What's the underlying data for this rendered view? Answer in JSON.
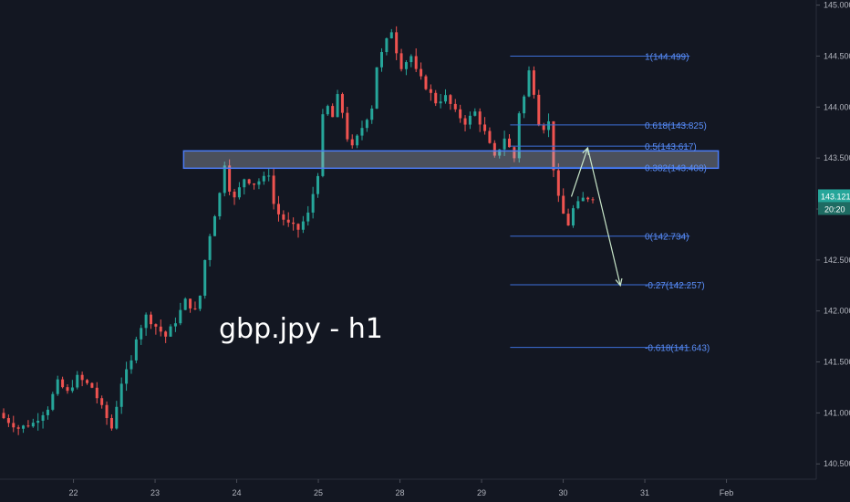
{
  "chart_data": {
    "type": "candlestick",
    "title": "gbp.jpy - h1",
    "ylim": [
      140.35,
      145.05
    ],
    "y_ticks": [
      "145.000",
      "144.500",
      "144.000",
      "143.500",
      "143.000",
      "142.500",
      "142.000",
      "141.500",
      "141.000",
      "140.500"
    ],
    "x_ticks": [
      {
        "label": "22",
        "pos": 0.09
      },
      {
        "label": "23",
        "pos": 0.19
      },
      {
        "label": "24",
        "pos": 0.29
      },
      {
        "label": "25",
        "pos": 0.39
      },
      {
        "label": "28",
        "pos": 0.49
      },
      {
        "label": "29",
        "pos": 0.59
      },
      {
        "label": "30",
        "pos": 0.69
      },
      {
        "label": "31",
        "pos": 0.79
      },
      {
        "label": "Feb",
        "pos": 0.89
      }
    ],
    "price_label": {
      "value": "143.121",
      "time": "20:20"
    },
    "candle_count": 135,
    "close_path": [
      [
        0,
        140.95
      ],
      [
        3,
        140.85
      ],
      [
        6,
        140.9
      ],
      [
        9,
        141.05
      ],
      [
        11,
        141.3
      ],
      [
        13,
        141.2
      ],
      [
        15,
        141.35
      ],
      [
        18,
        141.25
      ],
      [
        20,
        141.05
      ],
      [
        22,
        140.85
      ],
      [
        24,
        141.3
      ],
      [
        26,
        141.5
      ],
      [
        27,
        141.75
      ],
      [
        29,
        141.95
      ],
      [
        31,
        141.85
      ],
      [
        33,
        141.75
      ],
      [
        35,
        141.9
      ],
      [
        37,
        142.1
      ],
      [
        39,
        142.0
      ],
      [
        40,
        142.15
      ],
      [
        41,
        142.5
      ],
      [
        42,
        142.75
      ],
      [
        43,
        142.95
      ],
      [
        44,
        143.15
      ],
      [
        45,
        143.45
      ],
      [
        46,
        143.2
      ],
      [
        47,
        143.1
      ],
      [
        49,
        143.3
      ],
      [
        51,
        143.25
      ],
      [
        53,
        143.3
      ],
      [
        54,
        143.35
      ],
      [
        55,
        143.05
      ],
      [
        56,
        142.95
      ],
      [
        58,
        142.85
      ],
      [
        60,
        142.8
      ],
      [
        62,
        142.95
      ],
      [
        63,
        143.15
      ],
      [
        64,
        143.35
      ],
      [
        65,
        143.9
      ],
      [
        66,
        144.0
      ],
      [
        67,
        143.9
      ],
      [
        68,
        144.1
      ],
      [
        69,
        143.95
      ],
      [
        70,
        143.7
      ],
      [
        71,
        143.6
      ],
      [
        73,
        143.8
      ],
      [
        75,
        144.0
      ],
      [
        76,
        144.4
      ],
      [
        78,
        144.65
      ],
      [
        79,
        144.75
      ],
      [
        80,
        144.55
      ],
      [
        81,
        144.4
      ],
      [
        83,
        144.5
      ],
      [
        84,
        144.35
      ],
      [
        86,
        144.2
      ],
      [
        88,
        144.05
      ],
      [
        90,
        144.1
      ],
      [
        92,
        143.95
      ],
      [
        94,
        143.85
      ],
      [
        96,
        143.95
      ],
      [
        98,
        143.75
      ],
      [
        100,
        143.5
      ],
      [
        102,
        143.7
      ],
      [
        104,
        143.5
      ],
      [
        105,
        143.95
      ],
      [
        106,
        144.1
      ],
      [
        107,
        144.35
      ],
      [
        108,
        144.15
      ],
      [
        109,
        143.85
      ],
      [
        110,
        143.8
      ],
      [
        111,
        143.85
      ],
      [
        112,
        143.4
      ],
      [
        113,
        143.1
      ],
      [
        114,
        142.95
      ],
      [
        115,
        142.85
      ],
      [
        116,
        143.0
      ],
      [
        118,
        143.1
      ],
      [
        120,
        143.121
      ]
    ],
    "zone": {
      "from": 143.4,
      "to": 143.57,
      "x_start": 0.225,
      "x_end": 0.88
    },
    "fib_levels": [
      {
        "label": "1(144.499)",
        "value": 144.499
      },
      {
        "label": "0.618(143.825)",
        "value": 143.825
      },
      {
        "label": "0.5(143.617)",
        "value": 143.617
      },
      {
        "label": "0.382(143.408)",
        "value": 143.408
      },
      {
        "label": "0(142.734)",
        "value": 142.734
      },
      {
        "label": "-0.27(142.257)",
        "value": 142.257
      },
      {
        "label": "-0.618(141.643)",
        "value": 141.643
      }
    ],
    "fib_x": [
      0.625,
      0.845
    ],
    "projection": [
      [
        0.7,
        143.121
      ],
      [
        0.72,
        143.6
      ],
      [
        0.76,
        142.25
      ]
    ]
  }
}
